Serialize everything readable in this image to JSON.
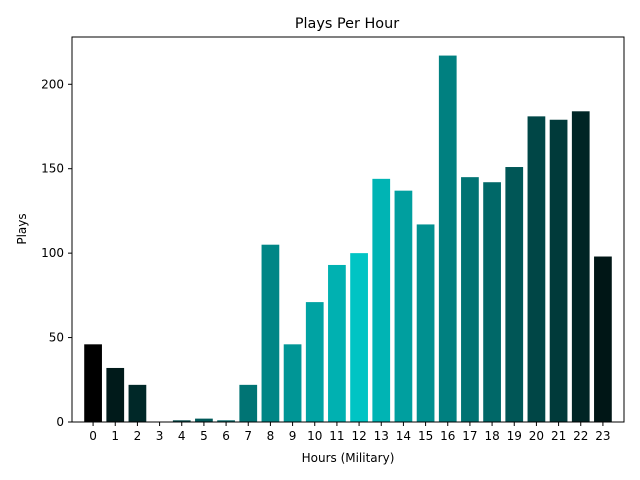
{
  "chart_data": {
    "type": "bar",
    "title": "Plays Per Hour",
    "xlabel": "Hours (Military)",
    "ylabel": "Plays",
    "categories": [
      "0",
      "1",
      "2",
      "3",
      "4",
      "5",
      "6",
      "7",
      "8",
      "9",
      "10",
      "11",
      "12",
      "13",
      "14",
      "15",
      "16",
      "17",
      "18",
      "19",
      "20",
      "21",
      "22",
      "23"
    ],
    "values": [
      46,
      32,
      22,
      0,
      1,
      2,
      1,
      22,
      105,
      46,
      71,
      93,
      100,
      144,
      137,
      117,
      217,
      145,
      142,
      151,
      181,
      179,
      184,
      98
    ],
    "colors": [
      "#000000",
      "#001a1a",
      "#002828",
      "#003838",
      "#004848",
      "#005858",
      "#006464",
      "#007474",
      "#008686",
      "#009696",
      "#00a3a3",
      "#00b1b1",
      "#00c4c4",
      "#00b4b4",
      "#009f9f",
      "#009090",
      "#008080",
      "#007373",
      "#006868",
      "#005656",
      "#004646",
      "#003a3a",
      "#002525",
      "#001616"
    ],
    "ylim": [
      0,
      228
    ],
    "yticks": [
      0,
      50,
      100,
      150,
      200
    ],
    "grid": false
  }
}
